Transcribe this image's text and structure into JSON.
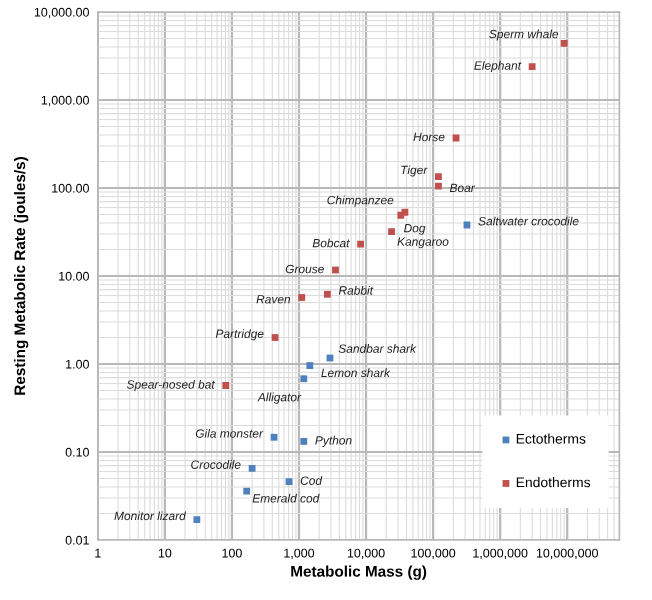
{
  "chart_data": {
    "type": "scatter",
    "xlabel": "Metabolic Mass (g)",
    "ylabel": "Resting Metabolic Rate (joules/s)",
    "log": "xy",
    "grid": true,
    "legend": "bottom right",
    "marker": "square",
    "xlim": [
      1,
      60000000
    ],
    "ylim": [
      0.01,
      10000
    ],
    "xticks": [
      {
        "value": 1,
        "label": "1"
      },
      {
        "value": 10,
        "label": "10"
      },
      {
        "value": 100,
        "label": "100"
      },
      {
        "value": 1000,
        "label": "1,000"
      },
      {
        "value": 10000,
        "label": "10,000"
      },
      {
        "value": 100000,
        "label": "100,000"
      },
      {
        "value": 1000000,
        "label": "1,000,000"
      },
      {
        "value": 10000000,
        "label": "10,000,000"
      }
    ],
    "yticks": [
      {
        "value": 0.01,
        "label": "0.01"
      },
      {
        "value": 0.1,
        "label": "0.10"
      },
      {
        "value": 1,
        "label": "1.00"
      },
      {
        "value": 10,
        "label": "10.00"
      },
      {
        "value": 100,
        "label": "100.00"
      },
      {
        "value": 1000,
        "label": "1,000.00"
      },
      {
        "value": 10000,
        "label": "10,000.00"
      }
    ],
    "series": [
      {
        "name": "Ectotherms",
        "color": "#4f81bd",
        "x": [
          320000,
          2900,
          1450,
          1180,
          425,
          1180,
          200,
          710,
          166,
          30
        ],
        "values": [
          38,
          1.17,
          0.96,
          0.68,
          0.147,
          0.132,
          0.065,
          0.046,
          0.036,
          0.017
        ]
      },
      {
        "name": "Endotherms",
        "color": "#c0504d",
        "x": [
          9000000,
          3000000,
          220000,
          120000,
          120000,
          38000,
          33000,
          24000,
          8300,
          3500,
          2650,
          1100,
          440,
          81
        ],
        "values": [
          4400,
          2400,
          370,
          135,
          105,
          53,
          49,
          32,
          23,
          11.7,
          6.2,
          5.7,
          2.0,
          0.57
        ]
      }
    ],
    "annotations": [
      {
        "text": "Sperm whale",
        "x": 9000000,
        "y": 4400
      },
      {
        "text": "Elephant",
        "x": 3000000,
        "y": 2400
      },
      {
        "text": "Horse",
        "x": 220000,
        "y": 370
      },
      {
        "text": "Tiger",
        "x": 120000,
        "y": 135
      },
      {
        "text": "Boar",
        "x": 120000,
        "y": 105
      },
      {
        "text": "Chimpanzee",
        "x": 38000,
        "y": 53
      },
      {
        "text": "Dog",
        "x": 33000,
        "y": 49
      },
      {
        "text": "Saltwater crocodile",
        "x": 320000,
        "y": 38
      },
      {
        "text": "Kangaroo",
        "x": 24000,
        "y": 32
      },
      {
        "text": "Bobcat",
        "x": 8300,
        "y": 23
      },
      {
        "text": "Grouse",
        "x": 3500,
        "y": 11.7
      },
      {
        "text": "Rabbit",
        "x": 2650,
        "y": 6.2
      },
      {
        "text": "Raven",
        "x": 1100,
        "y": 5.7
      },
      {
        "text": "Partridge",
        "x": 440,
        "y": 2.0
      },
      {
        "text": "Sandbar shark",
        "x": 2900,
        "y": 1.17
      },
      {
        "text": "Lemon shark",
        "x": 1450,
        "y": 0.96
      },
      {
        "text": "Alligator",
        "x": 1180,
        "y": 0.68
      },
      {
        "text": "Spear-nosed bat",
        "x": 81,
        "y": 0.57
      },
      {
        "text": "Gila monster",
        "x": 425,
        "y": 0.147
      },
      {
        "text": "Python",
        "x": 1180,
        "y": 0.132
      },
      {
        "text": "Crocodile",
        "x": 200,
        "y": 0.065
      },
      {
        "text": "Cod",
        "x": 710,
        "y": 0.046
      },
      {
        "text": "Emerald cod",
        "x": 166,
        "y": 0.036
      },
      {
        "text": "Monitor lizard",
        "x": 30,
        "y": 0.017
      }
    ]
  }
}
